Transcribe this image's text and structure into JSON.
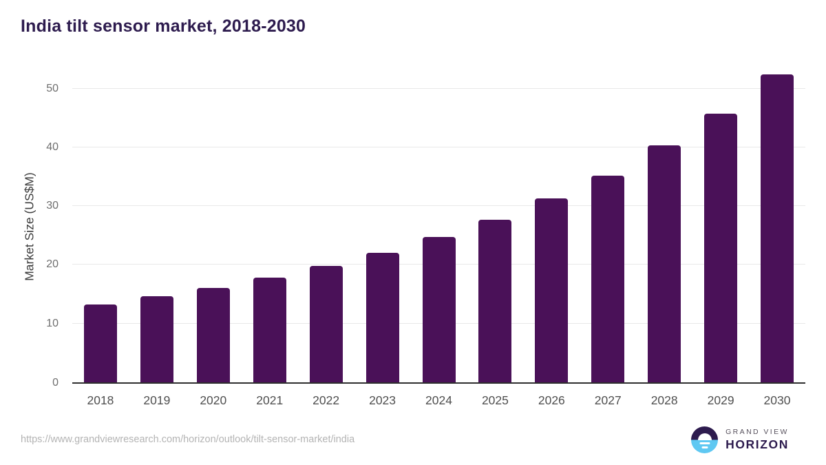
{
  "title": "India tilt sensor market, 2018-2030",
  "footer": {
    "source_url": "https://www.grandviewresearch.com/horizon/outlook/tilt-sensor-market/india",
    "logo": {
      "line1": "GRAND VIEW",
      "line2": "HORIZON"
    }
  },
  "colors": {
    "bar": "#4a1158",
    "title": "#2d1b4e",
    "grid": "#e8e8e8",
    "axis": "#2e2e2e",
    "tick": "#6e6e6e",
    "xlabel": "#4f4f4f",
    "ytitle": "#3d3d3d",
    "url": "#b4b4b4",
    "logo_blue": "#5fc8f2",
    "logo_dark": "#2d1b4e"
  },
  "chart_data": {
    "type": "bar",
    "categories": [
      "2018",
      "2019",
      "2020",
      "2021",
      "2022",
      "2023",
      "2024",
      "2025",
      "2026",
      "2027",
      "2028",
      "2029",
      "2030"
    ],
    "values": [
      13.3,
      14.7,
      16.1,
      17.8,
      19.8,
      22.1,
      24.7,
      27.7,
      31.3,
      35.2,
      40.3,
      45.8,
      52.4
    ],
    "title": "India tilt sensor market, 2018-2030",
    "xlabel": "",
    "ylabel": "Market Size (US$M)",
    "ylim": [
      0,
      53.6
    ],
    "yticks": [
      0,
      10,
      20,
      30,
      40,
      50
    ],
    "grid": true,
    "legend": "none",
    "bar_color": "#4a1158"
  }
}
